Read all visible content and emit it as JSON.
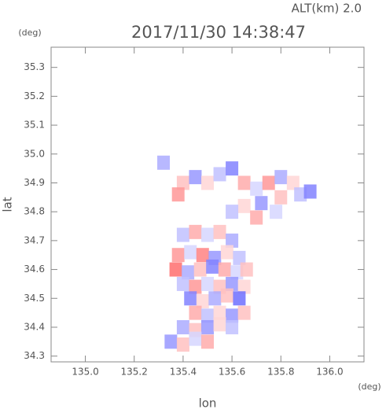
{
  "chart_data": {
    "type": "scatter",
    "title": "2017/11/30 14:38:47",
    "subtitle": "ALT(km) 2.0",
    "y_unit": "(deg)",
    "x_unit": "(deg)",
    "xlabel": "lon",
    "ylabel": "lat",
    "xlim": [
      134.86,
      136.14
    ],
    "ylim": [
      34.28,
      35.37
    ],
    "xticks": [
      {
        "value": 135,
        "label": "135.0"
      },
      135.2,
      135.4,
      135.6,
      135.8,
      {
        "value": 136,
        "label": "136.0"
      }
    ],
    "yticks": [
      34.3,
      34.4,
      34.5,
      34.6,
      34.7,
      34.8,
      34.9,
      {
        "value": 35,
        "label": "35.0"
      },
      35.1,
      35.2,
      35.3
    ],
    "positive_color": "#ff3030",
    "negative_color": "#3030ff",
    "x": [
      135.4,
      135.45,
      135.5,
      135.55,
      135.6,
      135.65,
      135.7,
      135.75,
      135.8,
      135.85,
      135.88,
      135.8,
      135.72,
      135.65,
      135.6,
      135.7,
      135.78,
      135.38,
      135.92,
      135.32,
      135.4,
      135.45,
      135.5,
      135.55,
      135.6,
      135.38,
      135.43,
      135.48,
      135.53,
      135.58,
      135.63,
      135.37,
      135.42,
      135.47,
      135.52,
      135.57,
      135.62,
      135.66,
      135.4,
      135.45,
      135.5,
      135.55,
      135.6,
      135.65,
      135.43,
      135.48,
      135.53,
      135.58,
      135.63,
      135.45,
      135.5,
      135.55,
      135.6,
      135.65,
      135.4,
      135.45,
      135.5,
      135.55,
      135.6,
      135.35,
      135.4,
      135.45,
      135.5
    ],
    "y": [
      34.9,
      34.92,
      34.9,
      34.93,
      34.95,
      34.9,
      34.88,
      34.9,
      34.92,
      34.9,
      34.86,
      34.85,
      34.83,
      34.82,
      34.8,
      34.78,
      34.8,
      34.86,
      34.87,
      34.97,
      34.72,
      34.73,
      34.72,
      34.73,
      34.7,
      34.65,
      34.66,
      34.65,
      34.64,
      34.66,
      34.64,
      34.6,
      34.59,
      34.6,
      34.61,
      34.6,
      34.59,
      34.6,
      34.55,
      34.54,
      34.55,
      34.54,
      34.55,
      34.54,
      34.5,
      34.49,
      34.5,
      34.51,
      34.5,
      34.45,
      34.44,
      34.45,
      34.44,
      34.45,
      34.4,
      34.39,
      34.4,
      34.41,
      34.4,
      34.35,
      34.34,
      34.36,
      34.35
    ],
    "values": [
      0.3,
      -0.5,
      0.2,
      -0.3,
      -0.6,
      0.4,
      -0.2,
      0.5,
      -0.4,
      0.2,
      -0.3,
      0.3,
      -0.5,
      0.2,
      -0.3,
      0.4,
      -0.2,
      0.5,
      -0.6,
      -0.4,
      -0.3,
      0.4,
      -0.2,
      0.3,
      -0.4,
      0.5,
      -0.2,
      0.6,
      -0.5,
      0.2,
      -0.3,
      0.7,
      -0.4,
      0.3,
      -0.6,
      0.4,
      -0.2,
      0.3,
      -0.3,
      0.5,
      -0.2,
      0.3,
      -0.5,
      0.2,
      -0.6,
      0.2,
      -0.4,
      0.3,
      -0.7,
      0.4,
      -0.3,
      0.2,
      -0.5,
      0.3,
      -0.4,
      0.3,
      -0.5,
      0.2,
      -0.3,
      -0.5,
      0.3,
      -0.2,
      0.4
    ]
  }
}
